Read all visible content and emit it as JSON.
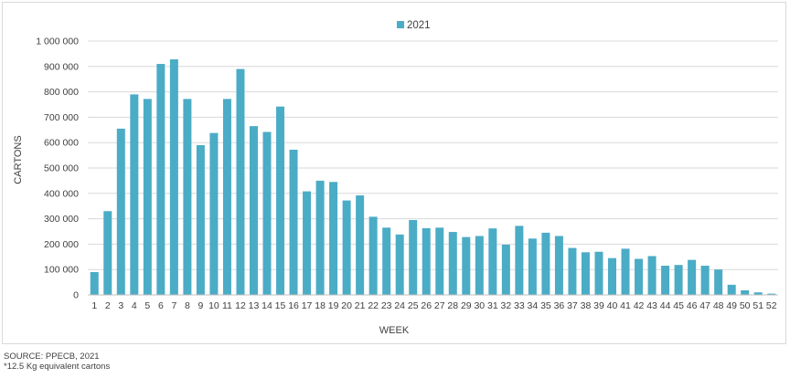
{
  "chart_data": {
    "type": "bar",
    "title": "",
    "xlabel": "WEEK",
    "ylabel": "CARTONS",
    "ylim": [
      0,
      1000000
    ],
    "yticks": [
      0,
      100000,
      200000,
      300000,
      400000,
      500000,
      600000,
      700000,
      800000,
      900000,
      1000000
    ],
    "ytick_labels": [
      "0",
      "100 000",
      "200 000",
      "300 000",
      "400 000",
      "500 000",
      "600 000",
      "700 000",
      "800 000",
      "900 000",
      "1 000 000"
    ],
    "grid": true,
    "legend": "top-center",
    "color": "#4bacc6",
    "categories": [
      "1",
      "2",
      "3",
      "4",
      "5",
      "6",
      "7",
      "8",
      "9",
      "10",
      "11",
      "12",
      "13",
      "14",
      "15",
      "16",
      "17",
      "18",
      "19",
      "20",
      "21",
      "22",
      "23",
      "24",
      "25",
      "26",
      "27",
      "28",
      "29",
      "30",
      "31",
      "32",
      "33",
      "34",
      "35",
      "36",
      "37",
      "38",
      "39",
      "40",
      "41",
      "42",
      "43",
      "44",
      "45",
      "46",
      "47",
      "48",
      "49",
      "50",
      "51",
      "52"
    ],
    "series": [
      {
        "name": "2021",
        "values": [
          90000,
          330000,
          655000,
          790000,
          772000,
          910000,
          928000,
          772000,
          590000,
          638000,
          772000,
          890000,
          665000,
          642000,
          742000,
          572000,
          408000,
          450000,
          445000,
          372000,
          392000,
          308000,
          265000,
          238000,
          295000,
          263000,
          265000,
          248000,
          228000,
          232000,
          262000,
          198000,
          272000,
          222000,
          245000,
          232000,
          185000,
          168000,
          170000,
          145000,
          182000,
          142000,
          153000,
          115000,
          118000,
          138000,
          115000,
          100000,
          40000,
          18000,
          10000,
          5000
        ]
      }
    ]
  },
  "notes": {
    "source": "SOURCE: PPECB, 2021",
    "footnote": "*12.5 Kg equivalent cartons"
  }
}
